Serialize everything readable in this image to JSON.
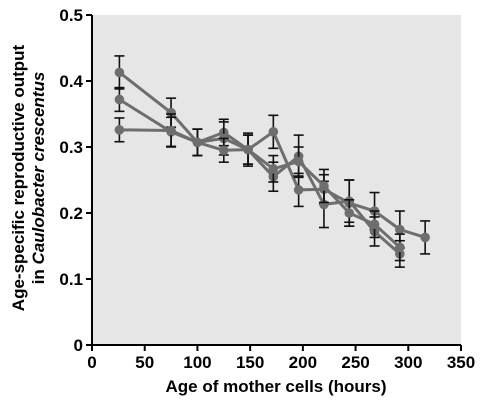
{
  "chart_data": {
    "type": "line",
    "xlabel": "Age of mother cells (hours)",
    "ylabel_line1": "Age-specific reproductive output",
    "ylabel_line2_prefix": "in ",
    "ylabel_line2_italic": "Caulobacter crescentus",
    "xlim": [
      0,
      350
    ],
    "ylim": [
      0,
      0.5
    ],
    "xticks": [
      0,
      50,
      100,
      150,
      200,
      250,
      300,
      350
    ],
    "yticks": [
      0,
      0.1,
      0.2,
      0.3,
      0.4,
      0.5
    ],
    "ytick_labels": [
      "0",
      "0.1",
      "0.2",
      "0.3",
      "0.4",
      "0.5"
    ],
    "grid": false,
    "background_color": "#e6e6e6",
    "series_color": "#6e6e6e",
    "series": [
      {
        "x": [
          26,
          75,
          100,
          125,
          148,
          172,
          196,
          220,
          244,
          268,
          292,
          316
        ],
        "y": [
          0.413,
          0.352,
          0.307,
          0.322,
          0.296,
          0.323,
          0.235,
          0.236,
          0.215,
          0.203,
          0.175,
          0.163
        ],
        "err": [
          0.025,
          0.022,
          0.02,
          0.02,
          0.022,
          0.025,
          0.025,
          0.022,
          0.035,
          0.028,
          0.028,
          0.025
        ]
      },
      {
        "x": [
          26,
          75,
          100,
          125,
          148,
          172,
          196,
          220,
          244,
          268,
          292
        ],
        "y": [
          0.372,
          0.323,
          0.307,
          0.313,
          0.296,
          0.255,
          0.286,
          0.213,
          0.218,
          0.172,
          0.138
        ],
        "err": [
          0.018,
          0.022,
          0.02,
          0.025,
          0.025,
          0.022,
          0.032,
          0.035,
          0.032,
          0.022,
          0.02
        ]
      },
      {
        "x": [
          26,
          75,
          100,
          125,
          148,
          172,
          196,
          220,
          244,
          268,
          292
        ],
        "y": [
          0.326,
          0.325,
          0.307,
          0.295,
          0.296,
          0.267,
          0.278,
          0.241,
          0.2,
          0.183,
          0.148
        ],
        "err": [
          0.018,
          0.025,
          0.02,
          0.018,
          0.022,
          0.02,
          0.022,
          0.025,
          0.02,
          0.02,
          0.02
        ]
      }
    ]
  }
}
